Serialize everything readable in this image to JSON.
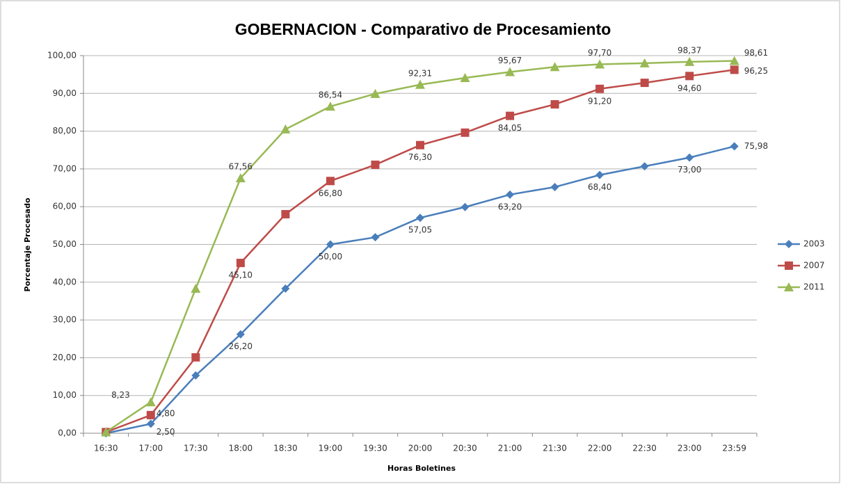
{
  "chart_data": {
    "type": "line",
    "title": "GOBERNACION - Comparativo de Procesamiento",
    "x_label": "Horas Boletines",
    "y_label": "Porcentaje Procesado",
    "categories": [
      "16:30",
      "17:00",
      "17:30",
      "18:00",
      "18:30",
      "19:00",
      "19:30",
      "20:00",
      "20:30",
      "21:00",
      "21:30",
      "22:00",
      "22:30",
      "23:00",
      "23:59"
    ],
    "series": [
      {
        "name": "2003",
        "color": "#4a7ebb",
        "marker": "diamond",
        "values": [
          0,
          2.5,
          15.3,
          26.2,
          38.3,
          50,
          51.9,
          57.05,
          59.9,
          63.2,
          65.2,
          68.4,
          70.7,
          73,
          75.98
        ],
        "value_labels": [
          null,
          "2,50",
          null,
          "26,20",
          null,
          "50,00",
          null,
          "57,05",
          null,
          "63,20",
          null,
          "68,40",
          null,
          "73,00",
          "75,98"
        ]
      },
      {
        "name": "2007",
        "color": "#be4b48",
        "marker": "square",
        "values": [
          0.3,
          4.8,
          20.1,
          45.1,
          58,
          66.8,
          71.1,
          76.3,
          79.6,
          84.05,
          87.1,
          91.2,
          92.8,
          94.6,
          96.25
        ],
        "value_labels": [
          null,
          "4,80",
          null,
          "45,10",
          null,
          "66,80",
          null,
          "76,30",
          null,
          "84,05",
          null,
          "91,20",
          null,
          "94,60",
          "96,25"
        ]
      },
      {
        "name": "2011",
        "color": "#98b954",
        "marker": "triangle",
        "values": [
          0.3,
          8.23,
          38.3,
          67.56,
          80.5,
          86.54,
          89.9,
          92.31,
          94.1,
          95.67,
          97,
          97.7,
          98,
          98.37,
          98.61
        ],
        "value_labels": [
          null,
          "8,23",
          null,
          "67,56",
          null,
          "86,54",
          null,
          "92,31",
          null,
          "95,67",
          null,
          "97,70",
          null,
          "98,37",
          "98,61"
        ]
      }
    ],
    "ylim": [
      0,
      100
    ],
    "yticks": [
      {
        "value": 0,
        "label": "0,00"
      },
      {
        "value": 10,
        "label": "10,00"
      },
      {
        "value": 20,
        "label": "20,00"
      },
      {
        "value": 30,
        "label": "30,00"
      },
      {
        "value": 40,
        "label": "40,00"
      },
      {
        "value": 50,
        "label": "50,00"
      },
      {
        "value": 60,
        "label": "60,00"
      },
      {
        "value": 70,
        "label": "70,00"
      },
      {
        "value": 80,
        "label": "80,00"
      },
      {
        "value": 90,
        "label": "90,00"
      },
      {
        "value": 100,
        "label": "100,00"
      }
    ],
    "grid": true,
    "legend": "right"
  }
}
